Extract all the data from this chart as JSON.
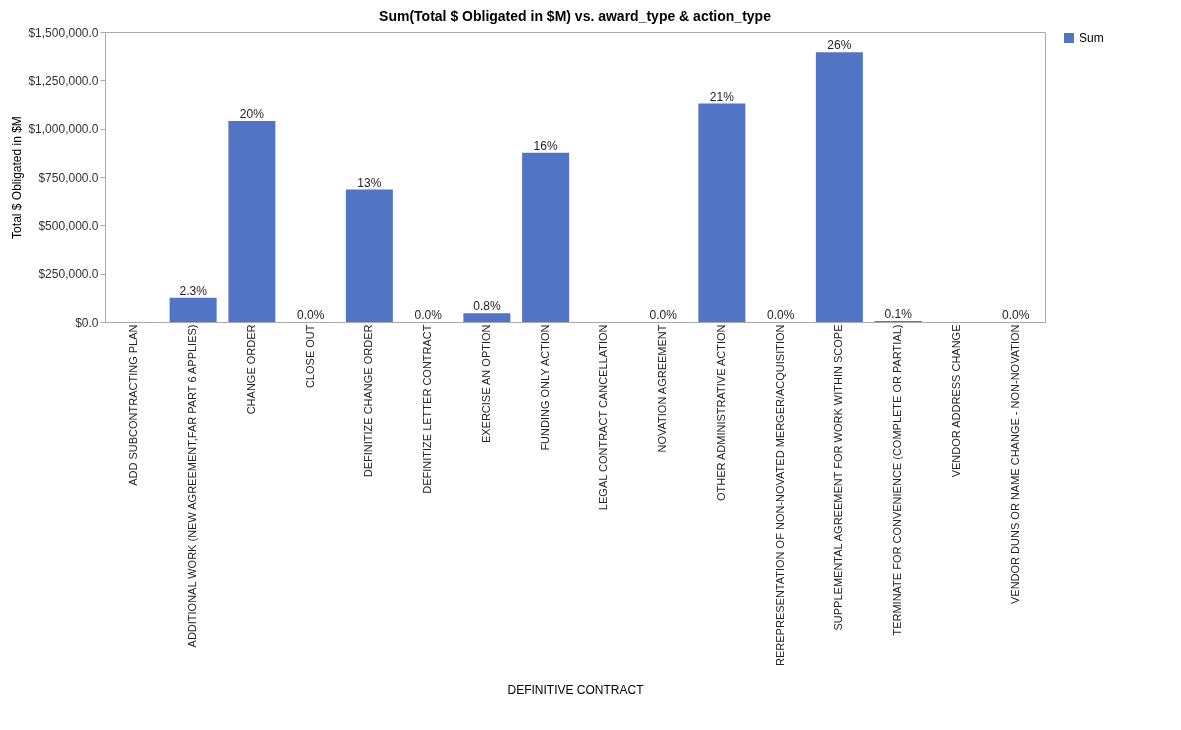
{
  "chart_data": {
    "type": "bar",
    "title": "Sum(Total $ Obligated in $M) vs. award_type & action_type",
    "xlabel": "DEFINITIVE CONTRACT",
    "ylabel": "Total $ Obligated in $M",
    "categories": [
      "ADD SUBCONTRACTING PLAN",
      "ADDITIONAL WORK (NEW AGREEMENT,FAR PART 6 APPLIES)",
      "CHANGE ORDER",
      "CLOSE OUT",
      "DEFINITIZE CHANGE ORDER",
      "DEFINITIZE LETTER CONTRACT",
      "EXERCISE AN OPTION",
      "FUNDING ONLY ACTION",
      "LEGAL CONTRACT CANCELLATION",
      "NOVATION AGREEMENT",
      "OTHER ADMINISTRATIVE ACTION",
      "REREPRESENTATION OF NON-NOVATED MERGER/ACQUISITION",
      "SUPPLEMENTAL AGREEMENT FOR WORK WITHIN SCOPE",
      "TERMINATE FOR CONVENIENCE (COMPLETE OR PARTIAL)",
      "VENDOR ADDRESS CHANGE",
      "VENDOR DUNS OR NAME CHANGE - NON-NOVATION"
    ],
    "series": [
      {
        "name": "Sum",
        "color": "#5274c4",
        "values": [
          null,
          125000,
          1040000,
          0,
          685000,
          0,
          45000,
          875000,
          null,
          0,
          1130000,
          0,
          1395000,
          5000,
          null,
          0
        ]
      }
    ],
    "annotations": [
      {
        "text": "2.3%",
        "x": "ADDITIONAL WORK (NEW AGREEMENT,FAR PART 6 APPLIES)",
        "y": 125000
      },
      {
        "text": "20%",
        "x": "CHANGE ORDER",
        "y": 1040000
      },
      {
        "text": "0.0%",
        "x": "CLOSE OUT",
        "y": 0
      },
      {
        "text": "13%",
        "x": "DEFINITIZE CHANGE ORDER",
        "y": 685000
      },
      {
        "text": "0.0%",
        "x": "DEFINITIZE LETTER CONTRACT",
        "y": 0
      },
      {
        "text": "0.8%",
        "x": "EXERCISE AN OPTION",
        "y": 45000
      },
      {
        "text": "16%",
        "x": "FUNDING ONLY ACTION",
        "y": 875000
      },
      {
        "text": "0.0%",
        "x": "NOVATION AGREEMENT",
        "y": 0
      },
      {
        "text": "21%",
        "x": "OTHER ADMINISTRATIVE ACTION",
        "y": 1130000
      },
      {
        "text": "0.0%",
        "x": "REREPRESENTATION OF NON-NOVATED MERGER/ACQUISITION",
        "y": 0
      },
      {
        "text": "26%",
        "x": "SUPPLEMENTAL AGREEMENT FOR WORK WITHIN SCOPE",
        "y": 1395000
      },
      {
        "text": "0.1%",
        "x": "TERMINATE FOR CONVENIENCE (COMPLETE OR PARTIAL)",
        "y": 5000
      },
      {
        "text": "0.0%",
        "x": "VENDOR DUNS OR NAME CHANGE - NON-NOVATION",
        "y": 0
      }
    ],
    "ylim": [
      0,
      1500000
    ],
    "yticks": [
      {
        "value": 0,
        "label": "$0.0"
      },
      {
        "value": 250000,
        "label": "$250,000.0"
      },
      {
        "value": 500000,
        "label": "$500,000.0"
      },
      {
        "value": 750000,
        "label": "$750,000.0"
      },
      {
        "value": 1000000,
        "label": "$1,000,000.0"
      },
      {
        "value": 1250000,
        "label": "$1,250,000.0"
      },
      {
        "value": 1500000,
        "label": "$1,500,000.0"
      }
    ],
    "grid": false,
    "legend": "top right"
  }
}
